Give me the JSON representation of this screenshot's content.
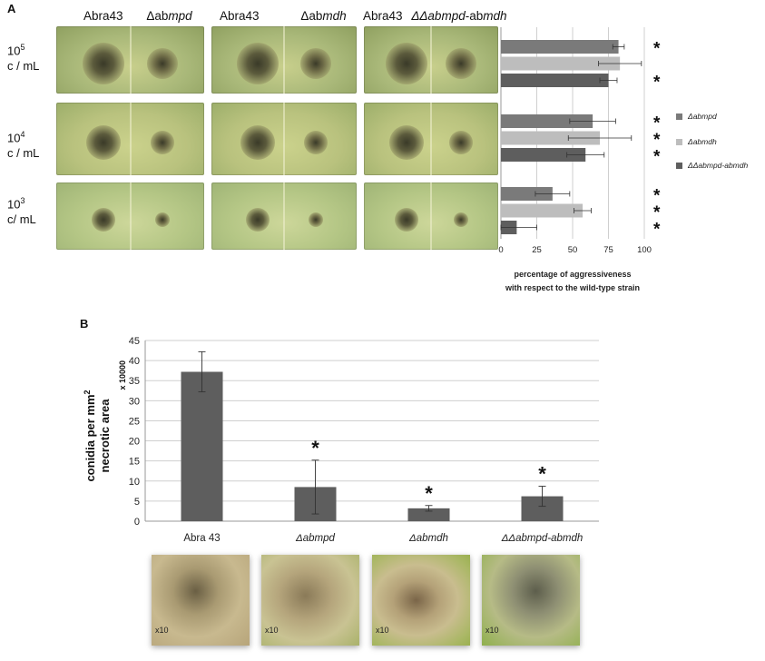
{
  "panelA": {
    "letter": "A",
    "col_labels": [
      {
        "wt": "Abra43",
        "mut_prefix": "Δab",
        "mut_italic": "mpd"
      },
      {
        "wt": "Abra43",
        "mut_prefix": "Δab",
        "mut_italic": "mdh"
      },
      {
        "wt": "Abra43",
        "mut_prefix": "",
        "mut_italic": "ΔΔabmpd",
        "mut_suffix": "-ab",
        "mut_suffix_italic": "mdh"
      }
    ],
    "row_labels": [
      {
        "base": "10",
        "exp": "5",
        "unit": "c / mL"
      },
      {
        "base": "10",
        "exp": "4",
        "unit": "c / mL"
      },
      {
        "base": "10",
        "exp": "3",
        "unit": "c/ mL"
      }
    ],
    "xlabel_line1": "percentage of aggressiveness",
    "xlabel_line2": "with respect to the wild-type strain",
    "significance_mark": "*"
  },
  "panelB": {
    "letter": "B",
    "ylabel_line1": "conidia per mm",
    "ylabel_sup": "2",
    "ylabel_line2": "necrotic area",
    "multiplier": "x 10000",
    "significance_mark": "*",
    "photo_magnification": "x10"
  },
  "colors": {
    "bar_dark": "#5e5e5e",
    "bar_mid": "#7a7a7a",
    "bar_light": "#bdbdbd",
    "grid": "#cfcfcf",
    "axis": "#999999"
  },
  "chart_data": [
    {
      "type": "bar",
      "orientation": "horizontal",
      "categories": [
        "10^5 c/mL",
        "10^4 c/mL",
        "10^3 c/mL"
      ],
      "series": [
        {
          "name": "Δabmpd",
          "values": [
            82,
            64,
            36
          ],
          "errors": [
            4,
            16,
            12
          ],
          "color": "#7a7a7a",
          "significant": [
            true,
            true,
            true
          ]
        },
        {
          "name": "Δabmdh",
          "values": [
            83,
            69,
            57
          ],
          "errors": [
            15,
            22,
            6
          ],
          "color": "#bdbdbd",
          "significant": [
            false,
            true,
            true
          ]
        },
        {
          "name": "ΔΔabmpd-abmdh",
          "values": [
            75,
            59,
            11
          ],
          "errors": [
            6,
            13,
            14
          ],
          "color": "#5e5e5e",
          "significant": [
            true,
            true,
            true
          ]
        }
      ],
      "xlim": [
        0,
        100
      ],
      "xticks": [
        "0",
        "25",
        "50",
        "75",
        "100"
      ],
      "xlabel": "percentage of aggressiveness with respect to the wild-type strain",
      "legend_position": "right",
      "grid": true
    },
    {
      "type": "bar",
      "categories": [
        "Abra 43",
        "Δabmpd",
        "Δabmdh",
        "ΔΔabmpd-abmdh"
      ],
      "values": [
        37.2,
        8.5,
        3.2,
        6.2
      ],
      "errors": [
        5,
        6.7,
        0.7,
        2.5
      ],
      "significant": [
        false,
        true,
        true,
        true
      ],
      "ylim": [
        0,
        45
      ],
      "yticks": [
        "0",
        "5",
        "10",
        "15",
        "20",
        "25",
        "30",
        "35",
        "40",
        "45"
      ],
      "ylabel": "conidia per mm2 necrotic area",
      "grid": true
    }
  ]
}
